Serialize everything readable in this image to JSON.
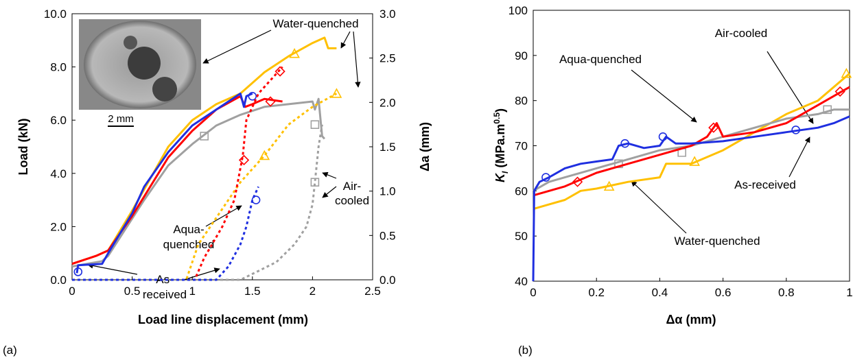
{
  "chart_data": [
    {
      "type": "line",
      "panel_label": "(a)",
      "xlabel": "Load line displacement (mm)",
      "ylabel": "Load (kN)",
      "y2label": "Δa (mm)",
      "xlim": [
        0,
        2.5
      ],
      "xticks": [
        0,
        0.5,
        1,
        1.5,
        2,
        2.5
      ],
      "ylim": [
        0,
        10
      ],
      "yticks": [
        {
          "value": 0,
          "label": "0.0"
        },
        {
          "value": 2,
          "label": "2.0"
        },
        {
          "value": 4,
          "label": "4.0"
        },
        {
          "value": 6,
          "label": "6.0"
        },
        {
          "value": 8,
          "label": "8.0"
        },
        {
          "value": 10,
          "label": "10.0"
        }
      ],
      "y2lim": [
        0,
        3
      ],
      "y2ticks": [
        {
          "value": 0,
          "label": "0.0"
        },
        0.5,
        {
          "value": 1,
          "label": "1.0"
        },
        1.5,
        {
          "value": 2,
          "label": "2.0"
        },
        2.5,
        {
          "value": 3,
          "label": "3.0"
        }
      ],
      "inset_scale": "2 mm",
      "annotations": [
        [
          "Water-quenched"
        ],
        [
          "Air-",
          "cooled"
        ],
        [
          "Aqua-",
          "quenched"
        ],
        [
          "As-",
          "received"
        ]
      ],
      "series": [
        {
          "color": "#ffc000",
          "line_style": "solid",
          "marker": "triangle",
          "x": [
            0,
            0.2,
            0.3,
            0.5,
            0.8,
            1.0,
            1.2,
            1.4,
            1.6,
            1.8,
            2.0,
            2.1,
            2.13,
            2.2
          ],
          "values": [
            0.6,
            0.9,
            1.1,
            2.6,
            5.0,
            6.0,
            6.6,
            7.0,
            7.8,
            8.4,
            8.9,
            9.1,
            8.7,
            8.7
          ],
          "markers": {
            "x": [
              1.85
            ],
            "y": [
              8.5
            ]
          }
        },
        {
          "color": "#a0a0a0",
          "line_style": "solid",
          "marker": "square",
          "x": [
            0,
            0.25,
            0.3,
            0.6,
            0.8,
            1.0,
            1.2,
            1.4,
            1.6,
            1.8,
            2.0,
            2.02,
            2.05,
            2.08,
            2.1
          ],
          "values": [
            0.5,
            0.7,
            0.9,
            3.0,
            4.3,
            5.1,
            5.8,
            6.2,
            6.5,
            6.6,
            6.7,
            6.4,
            6.8,
            5.4,
            5.3
          ],
          "markers": {
            "x": [
              1.1
            ],
            "y": [
              5.4
            ]
          }
        },
        {
          "color": "#ff0000",
          "line_style": "solid",
          "marker": "diamond",
          "x": [
            0,
            0.2,
            0.3,
            0.5,
            0.8,
            1.0,
            1.2,
            1.4,
            1.44,
            1.5,
            1.6,
            1.75
          ],
          "values": [
            0.6,
            0.9,
            1.1,
            2.4,
            4.6,
            5.6,
            6.4,
            6.9,
            6.5,
            6.6,
            6.8,
            6.7
          ],
          "markers": {
            "x": [
              1.65
            ],
            "y": [
              6.7
            ]
          }
        },
        {
          "color": "#1f2fe0",
          "line_style": "solid",
          "marker": "circle",
          "x": [
            0.04,
            0.05,
            0.25,
            0.3,
            0.5,
            0.6,
            0.8,
            1.0,
            1.2,
            1.4,
            1.43,
            1.45,
            1.5
          ],
          "values": [
            0.25,
            0.55,
            0.6,
            1.0,
            2.5,
            3.5,
            4.8,
            5.8,
            6.4,
            7.0,
            6.5,
            6.9,
            7.0
          ],
          "markers": {
            "x": [
              0.05,
              1.5
            ],
            "y": [
              0.3,
              6.9
            ]
          }
        },
        {
          "color": "#ffc000",
          "line_style": "dotted",
          "marker": "triangle",
          "axis": "y2",
          "x": [
            0,
            0.95,
            1.05,
            1.2,
            1.4,
            1.6,
            1.8,
            2.0,
            2.2
          ],
          "values": [
            0,
            0,
            0.4,
            0.7,
            1.1,
            1.4,
            1.75,
            1.95,
            2.1
          ],
          "markers": {
            "x": [
              1.6,
              2.2
            ],
            "y": [
              1.4,
              2.1
            ]
          }
        },
        {
          "color": "#a0a0a0",
          "line_style": "dotted",
          "marker": "square",
          "axis": "y2",
          "x": [
            0,
            1.4,
            1.55,
            1.7,
            1.85,
            1.95,
            2.0,
            2.02,
            2.05,
            2.08
          ],
          "values": [
            0,
            0,
            0.1,
            0.2,
            0.4,
            0.6,
            0.85,
            1.1,
            1.5,
            1.75
          ],
          "markers": {
            "x": [
              2.02,
              2.02
            ],
            "y": [
              1.1,
              1.75
            ]
          }
        },
        {
          "color": "#ff0000",
          "line_style": "dotted",
          "marker": "diamond",
          "axis": "y2",
          "x": [
            0,
            1.02,
            1.1,
            1.25,
            1.35,
            1.42,
            1.45,
            1.55,
            1.75
          ],
          "values": [
            0,
            0,
            0.25,
            0.6,
            0.9,
            1.4,
            1.8,
            2.1,
            2.4
          ],
          "markers": {
            "x": [
              1.43,
              1.73
            ],
            "y": [
              1.35,
              2.35
            ]
          }
        },
        {
          "color": "#1f2fe0",
          "line_style": "dotted",
          "marker": "circle",
          "axis": "y2",
          "x": [
            0,
            1.2,
            1.3,
            1.4,
            1.45,
            1.5,
            1.55
          ],
          "values": [
            0,
            0,
            0.15,
            0.4,
            0.6,
            0.9,
            1.05
          ],
          "markers": {
            "x": [
              1.53
            ],
            "y": [
              0.9
            ]
          }
        }
      ]
    },
    {
      "type": "line",
      "panel_label": "(b)",
      "xlabel": "Δα (mm)",
      "ylabel": {
        "symbol": "K",
        "sub": "I",
        "unit": " (MPa.m",
        "sup": "0.5",
        "close": ")"
      },
      "xlim": [
        0,
        1
      ],
      "xticks": [
        0,
        0.2,
        0.4,
        0.6,
        0.8,
        1
      ],
      "ylim": [
        40,
        100
      ],
      "yticks": [
        40,
        50,
        60,
        70,
        80,
        90,
        100
      ],
      "annotations": [
        [
          "Air-cooled"
        ],
        [
          "Aqua-quenched"
        ],
        [
          "As-received"
        ],
        [
          "Water-quenched"
        ]
      ],
      "series": [
        {
          "color": "#ffc000",
          "line_style": "solid",
          "marker": "triangle",
          "x": [
            0,
            0.05,
            0.1,
            0.15,
            0.2,
            0.3,
            0.4,
            0.42,
            0.5,
            0.6,
            0.7,
            0.8,
            0.9,
            1.0
          ],
          "values": [
            56,
            57,
            58,
            60,
            60.5,
            62,
            63,
            66,
            66,
            69,
            73,
            77,
            80,
            86
          ],
          "markers": {
            "x": [
              0.24,
              0.51,
              0.99
            ],
            "y": [
              61,
              66.5,
              86
            ]
          }
        },
        {
          "color": "#a0a0a0",
          "line_style": "solid",
          "marker": "square",
          "x": [
            0,
            0.05,
            0.1,
            0.2,
            0.3,
            0.4,
            0.5,
            0.6,
            0.7,
            0.8,
            0.9,
            0.95,
            1.0
          ],
          "values": [
            60,
            62,
            63,
            65,
            67,
            69,
            70,
            72,
            74,
            76,
            77,
            78,
            78
          ],
          "markers": {
            "x": [
              0.27,
              0.47,
              0.93
            ],
            "y": [
              66,
              68.5,
              78
            ]
          }
        },
        {
          "color": "#ff0000",
          "line_style": "solid",
          "marker": "diamond",
          "x": [
            0,
            0.1,
            0.2,
            0.3,
            0.4,
            0.5,
            0.55,
            0.58,
            0.6,
            0.7,
            0.8,
            0.9,
            0.95,
            1.0
          ],
          "values": [
            59,
            61,
            64,
            66,
            68,
            70,
            72,
            75,
            72,
            73,
            75,
            79,
            81,
            83
          ],
          "markers": {
            "x": [
              0.14,
              0.57,
              0.97
            ],
            "y": [
              62,
              74,
              82
            ]
          }
        },
        {
          "color": "#1f2fe0",
          "line_style": "solid",
          "marker": "circle",
          "x": [
            0,
            0.003,
            0.02,
            0.05,
            0.1,
            0.15,
            0.2,
            0.25,
            0.27,
            0.3,
            0.35,
            0.4,
            0.42,
            0.45,
            0.5,
            0.6,
            0.7,
            0.8,
            0.9,
            0.95,
            1.0
          ],
          "values": [
            40,
            60,
            62,
            63,
            65,
            66,
            66.5,
            67,
            70,
            70.5,
            69.5,
            70,
            72,
            70.5,
            70.5,
            71,
            72,
            73,
            74,
            75,
            76.5
          ],
          "markers": {
            "x": [
              0.04,
              0.29,
              0.41,
              0.83
            ],
            "y": [
              63,
              70.5,
              72,
              73.5
            ]
          }
        }
      ]
    }
  ]
}
